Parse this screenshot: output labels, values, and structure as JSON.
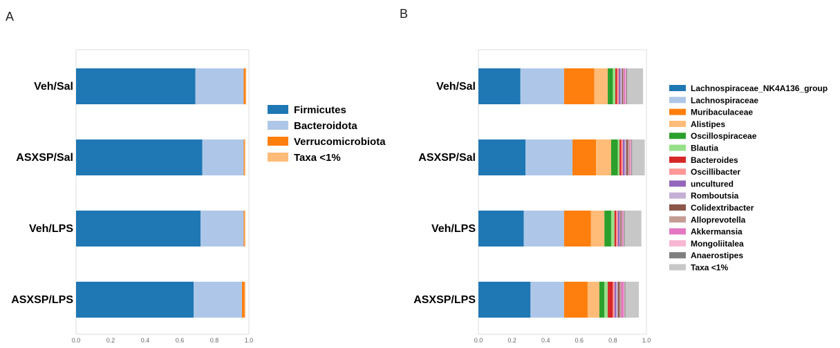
{
  "panels": {
    "a_label": "A",
    "b_label": "B"
  },
  "chart_data": [
    {
      "type": "bar",
      "orientation": "horizontal",
      "stacked": true,
      "title": "",
      "xlabel": "",
      "ylabel": "",
      "xlim": [
        0,
        1.0
      ],
      "xticks": [
        "0.0",
        "0.2",
        "0.4",
        "0.6",
        "0.8",
        "1.0"
      ],
      "grid": false,
      "legend_position": "right",
      "categories": [
        "Veh/Sal",
        "ASXSP/Sal",
        "Veh/LPS",
        "ASXSP/LPS"
      ],
      "series": [
        {
          "name": "Firmicutes",
          "color": "#1f77b4",
          "values": [
            0.69,
            0.73,
            0.72,
            0.68
          ]
        },
        {
          "name": "Bacteroidota",
          "color": "#aec7e8",
          "values": [
            0.28,
            0.24,
            0.25,
            0.28
          ]
        },
        {
          "name": "Verrucomicrobiota",
          "color": "#ff7f0e",
          "values": [
            0.01,
            0.005,
            0.005,
            0.015
          ]
        },
        {
          "name": "Taxa <1%",
          "color": "#ffbb78",
          "values": [
            0.005,
            0.005,
            0.005,
            0.005
          ]
        }
      ]
    },
    {
      "type": "bar",
      "orientation": "horizontal",
      "stacked": true,
      "title": "",
      "xlabel": "",
      "ylabel": "",
      "xlim": [
        0,
        1.0
      ],
      "xticks": [
        "0.0",
        "0.2",
        "0.4",
        "0.6",
        "0.8",
        "1.0"
      ],
      "grid": false,
      "legend_position": "right",
      "categories": [
        "Veh/Sal",
        "ASXSP/Sal",
        "Veh/LPS",
        "ASXSP/LPS"
      ],
      "series": [
        {
          "name": "Lachnospiraceae_NK4A136_group",
          "color": "#1f77b4",
          "values": [
            0.25,
            0.28,
            0.27,
            0.31
          ]
        },
        {
          "name": "Lachnospiraceae",
          "color": "#aec7e8",
          "values": [
            0.26,
            0.28,
            0.24,
            0.2
          ]
        },
        {
          "name": "Muribaculaceae",
          "color": "#ff7f0e",
          "values": [
            0.18,
            0.14,
            0.16,
            0.14
          ]
        },
        {
          "name": "Alistipes",
          "color": "#ffbb78",
          "values": [
            0.08,
            0.09,
            0.08,
            0.07
          ]
        },
        {
          "name": "Oscillospiraceae",
          "color": "#2ca02c",
          "values": [
            0.03,
            0.04,
            0.04,
            0.03
          ]
        },
        {
          "name": "Blautia",
          "color": "#98df8a",
          "values": [
            0.015,
            0.01,
            0.02,
            0.02
          ]
        },
        {
          "name": "Bacteroides",
          "color": "#d62728",
          "values": [
            0.01,
            0.01,
            0.01,
            0.03
          ]
        },
        {
          "name": "Oscillibacter",
          "color": "#ff9896",
          "values": [
            0.01,
            0.01,
            0.01,
            0.01
          ]
        },
        {
          "name": "uncultured",
          "color": "#9467bd",
          "values": [
            0.01,
            0.01,
            0.01,
            0.01
          ]
        },
        {
          "name": "Romboutsia",
          "color": "#c5b0d5",
          "values": [
            0.01,
            0.01,
            0.005,
            0.01
          ]
        },
        {
          "name": "Colidextribacter",
          "color": "#8c564b",
          "values": [
            0.005,
            0.01,
            0.005,
            0.01
          ]
        },
        {
          "name": "Alloprevotella",
          "color": "#c49c94",
          "values": [
            0.005,
            0.01,
            0.005,
            0.01
          ]
        },
        {
          "name": "Akkermansia",
          "color": "#e377c2",
          "values": [
            0.01,
            0.005,
            0.005,
            0.015
          ]
        },
        {
          "name": "Mongoliitalea",
          "color": "#f7b6d2",
          "values": [
            0.005,
            0.005,
            0.005,
            0.005
          ]
        },
        {
          "name": "Anaerostipes",
          "color": "#7f7f7f",
          "values": [
            0.005,
            0.005,
            0.005,
            0.005
          ]
        },
        {
          "name": "Taxa <1%",
          "color": "#c7c7c7",
          "values": [
            0.095,
            0.075,
            0.1,
            0.08
          ]
        }
      ]
    }
  ]
}
